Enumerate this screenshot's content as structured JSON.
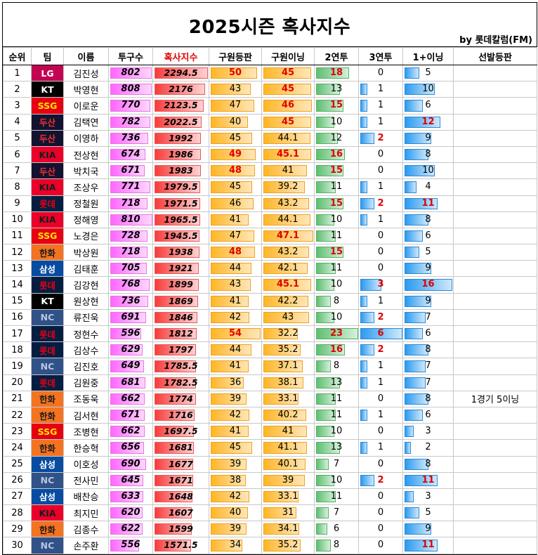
{
  "title": "2025시즌 혹사지수",
  "byline": "by 롯데칼럼(FM)",
  "headers": [
    "순위",
    "팀",
    "이름",
    "투구수",
    "혹사지수",
    "구원등판",
    "구원이닝",
    "2연투",
    "3연투",
    "1+이닝",
    "선발등판"
  ],
  "highlight_header": "혹사지수",
  "max": {
    "pitches": 810,
    "index": 2294.5,
    "relief": 54,
    "innings": 47.1,
    "two": 23,
    "three": 6,
    "plus": 16
  },
  "rows": [
    {
      "rank": "1",
      "team": "LG",
      "team_class": "LG",
      "name": "김진성",
      "pitches": "802",
      "index": "2294.5",
      "relief": "50",
      "innings": "45",
      "two": "18",
      "three": "0",
      "plus": "5",
      "start": "",
      "relief_hl": true,
      "innings_hl": true,
      "two_hl": true,
      "three_hl": false,
      "plus_hl": false
    },
    {
      "rank": "2",
      "team": "KT",
      "team_class": "KT",
      "name": "박영현",
      "pitches": "808",
      "index": "2176",
      "relief": "43",
      "innings": "45",
      "two": "13",
      "three": "1",
      "plus": "10",
      "start": "",
      "relief_hl": false,
      "innings_hl": true,
      "two_hl": false,
      "three_hl": false,
      "plus_hl": false
    },
    {
      "rank": "3",
      "team": "SSG",
      "team_class": "SSG",
      "name": "이로운",
      "pitches": "770",
      "index": "2123.5",
      "relief": "47",
      "innings": "46",
      "two": "15",
      "three": "1",
      "plus": "6",
      "start": "",
      "relief_hl": false,
      "innings_hl": true,
      "two_hl": true,
      "three_hl": false,
      "plus_hl": false
    },
    {
      "rank": "4",
      "team": "두산",
      "team_class": "DOOSAN",
      "name": "김택연",
      "pitches": "782",
      "index": "2022.5",
      "relief": "40",
      "innings": "45",
      "two": "10",
      "three": "1",
      "plus": "12",
      "start": "",
      "relief_hl": false,
      "innings_hl": true,
      "two_hl": false,
      "three_hl": false,
      "plus_hl": true
    },
    {
      "rank": "5",
      "team": "두산",
      "team_class": "DOOSAN",
      "name": "이영하",
      "pitches": "736",
      "index": "1992",
      "relief": "45",
      "innings": "44.1",
      "two": "12",
      "three": "2",
      "plus": "9",
      "start": "",
      "relief_hl": false,
      "innings_hl": false,
      "two_hl": false,
      "three_hl": true,
      "plus_hl": false
    },
    {
      "rank": "6",
      "team": "KIA",
      "team_class": "KIA",
      "name": "전상현",
      "pitches": "674",
      "index": "1986",
      "relief": "49",
      "innings": "45.1",
      "two": "16",
      "three": "0",
      "plus": "8",
      "start": "",
      "relief_hl": true,
      "innings_hl": true,
      "two_hl": true,
      "three_hl": false,
      "plus_hl": false
    },
    {
      "rank": "7",
      "team": "두산",
      "team_class": "DOOSAN",
      "name": "박치국",
      "pitches": "671",
      "index": "1983",
      "relief": "48",
      "innings": "41",
      "two": "15",
      "three": "0",
      "plus": "10",
      "start": "",
      "relief_hl": true,
      "innings_hl": false,
      "two_hl": true,
      "three_hl": false,
      "plus_hl": false
    },
    {
      "rank": "8",
      "team": "KIA",
      "team_class": "KIA",
      "name": "조상우",
      "pitches": "771",
      "index": "1979.5",
      "relief": "45",
      "innings": "39.2",
      "two": "11",
      "three": "1",
      "plus": "4",
      "start": "",
      "relief_hl": false,
      "innings_hl": false,
      "two_hl": false,
      "three_hl": false,
      "plus_hl": false
    },
    {
      "rank": "9",
      "team": "롯데",
      "team_class": "LOTTE",
      "name": "정철원",
      "pitches": "718",
      "index": "1971.5",
      "relief": "46",
      "innings": "43.2",
      "two": "15",
      "three": "2",
      "plus": "11",
      "start": "",
      "relief_hl": false,
      "innings_hl": false,
      "two_hl": true,
      "three_hl": true,
      "plus_hl": true
    },
    {
      "rank": "10",
      "team": "KIA",
      "team_class": "KIA",
      "name": "정해영",
      "pitches": "810",
      "index": "1965.5",
      "relief": "41",
      "innings": "44.1",
      "two": "10",
      "three": "1",
      "plus": "8",
      "start": "",
      "relief_hl": false,
      "innings_hl": false,
      "two_hl": false,
      "three_hl": false,
      "plus_hl": false
    },
    {
      "rank": "11",
      "team": "SSG",
      "team_class": "SSG",
      "name": "노경은",
      "pitches": "728",
      "index": "1945.5",
      "relief": "47",
      "innings": "47.1",
      "two": "11",
      "three": "0",
      "plus": "6",
      "start": "",
      "relief_hl": false,
      "innings_hl": true,
      "two_hl": false,
      "three_hl": false,
      "plus_hl": false
    },
    {
      "rank": "12",
      "team": "한화",
      "team_class": "HANWHA",
      "name": "박상원",
      "pitches": "718",
      "index": "1938",
      "relief": "48",
      "innings": "43.2",
      "two": "15",
      "three": "0",
      "plus": "5",
      "start": "",
      "relief_hl": true,
      "innings_hl": false,
      "two_hl": true,
      "three_hl": false,
      "plus_hl": false
    },
    {
      "rank": "13",
      "team": "삼성",
      "team_class": "SAMSUNG",
      "name": "김태훈",
      "pitches": "705",
      "index": "1921",
      "relief": "44",
      "innings": "42.1",
      "two": "11",
      "three": "0",
      "plus": "9",
      "start": "",
      "relief_hl": false,
      "innings_hl": false,
      "two_hl": false,
      "three_hl": false,
      "plus_hl": false
    },
    {
      "rank": "14",
      "team": "롯데",
      "team_class": "LOTTE",
      "name": "김강현",
      "pitches": "768",
      "index": "1899",
      "relief": "43",
      "innings": "45.1",
      "two": "10",
      "three": "3",
      "plus": "16",
      "start": "",
      "relief_hl": false,
      "innings_hl": true,
      "two_hl": false,
      "three_hl": true,
      "plus_hl": true
    },
    {
      "rank": "15",
      "team": "KT",
      "team_class": "KT",
      "name": "원상현",
      "pitches": "736",
      "index": "1869",
      "relief": "41",
      "innings": "42.2",
      "two": "8",
      "three": "1",
      "plus": "9",
      "start": "",
      "relief_hl": false,
      "innings_hl": false,
      "two_hl": false,
      "three_hl": false,
      "plus_hl": false
    },
    {
      "rank": "16",
      "team": "NC",
      "team_class": "NC",
      "name": "류진욱",
      "pitches": "691",
      "index": "1846",
      "relief": "42",
      "innings": "43",
      "two": "10",
      "three": "2",
      "plus": "7",
      "start": "",
      "relief_hl": false,
      "innings_hl": false,
      "two_hl": false,
      "three_hl": true,
      "plus_hl": false
    },
    {
      "rank": "17",
      "team": "롯데",
      "team_class": "LOTTE",
      "name": "정현수",
      "pitches": "596",
      "index": "1812",
      "relief": "54",
      "innings": "32.2",
      "two": "23",
      "three": "6",
      "plus": "6",
      "start": "",
      "relief_hl": true,
      "innings_hl": false,
      "two_hl": true,
      "three_hl": true,
      "plus_hl": false
    },
    {
      "rank": "18",
      "team": "롯데",
      "team_class": "LOTTE",
      "name": "김상수",
      "pitches": "629",
      "index": "1797",
      "relief": "44",
      "innings": "35.2",
      "two": "16",
      "three": "2",
      "plus": "8",
      "start": "",
      "relief_hl": false,
      "innings_hl": false,
      "two_hl": true,
      "three_hl": true,
      "plus_hl": false
    },
    {
      "rank": "19",
      "team": "NC",
      "team_class": "NC",
      "name": "김진호",
      "pitches": "649",
      "index": "1785.5",
      "relief": "41",
      "innings": "37.1",
      "two": "8",
      "three": "1",
      "plus": "7",
      "start": "",
      "relief_hl": false,
      "innings_hl": false,
      "two_hl": false,
      "three_hl": false,
      "plus_hl": false
    },
    {
      "rank": "20",
      "team": "롯데",
      "team_class": "LOTTE",
      "name": "김원중",
      "pitches": "681",
      "index": "1782.5",
      "relief": "36",
      "innings": "38.1",
      "two": "13",
      "three": "1",
      "plus": "7",
      "start": "",
      "relief_hl": false,
      "innings_hl": false,
      "two_hl": false,
      "three_hl": false,
      "plus_hl": false
    },
    {
      "rank": "21",
      "team": "한화",
      "team_class": "HANWHA",
      "name": "조동욱",
      "pitches": "662",
      "index": "1774",
      "relief": "39",
      "innings": "33.1",
      "two": "11",
      "three": "0",
      "plus": "8",
      "start": "1경기 5이닝",
      "relief_hl": false,
      "innings_hl": false,
      "two_hl": false,
      "three_hl": false,
      "plus_hl": false
    },
    {
      "rank": "22",
      "team": "한화",
      "team_class": "HANWHA",
      "name": "김서현",
      "pitches": "671",
      "index": "1716",
      "relief": "42",
      "innings": "40.2",
      "two": "11",
      "three": "1",
      "plus": "6",
      "start": "",
      "relief_hl": false,
      "innings_hl": false,
      "two_hl": false,
      "three_hl": false,
      "plus_hl": false
    },
    {
      "rank": "23",
      "team": "SSG",
      "team_class": "SSG",
      "name": "조병현",
      "pitches": "662",
      "index": "1697.5",
      "relief": "41",
      "innings": "41",
      "two": "10",
      "three": "0",
      "plus": "3",
      "start": "",
      "relief_hl": false,
      "innings_hl": false,
      "two_hl": false,
      "three_hl": false,
      "plus_hl": false
    },
    {
      "rank": "24",
      "team": "한화",
      "team_class": "HANWHA",
      "name": "한승혁",
      "pitches": "656",
      "index": "1681",
      "relief": "45",
      "innings": "41.1",
      "two": "13",
      "three": "1",
      "plus": "2",
      "start": "",
      "relief_hl": false,
      "innings_hl": false,
      "two_hl": false,
      "three_hl": false,
      "plus_hl": false
    },
    {
      "rank": "25",
      "team": "삼성",
      "team_class": "SAMSUNG",
      "name": "이호성",
      "pitches": "690",
      "index": "1677",
      "relief": "39",
      "innings": "40.1",
      "two": "7",
      "three": "0",
      "plus": "8",
      "start": "",
      "relief_hl": false,
      "innings_hl": false,
      "two_hl": false,
      "three_hl": false,
      "plus_hl": false
    },
    {
      "rank": "26",
      "team": "NC",
      "team_class": "NC",
      "name": "전사민",
      "pitches": "645",
      "index": "1671",
      "relief": "38",
      "innings": "39",
      "two": "10",
      "three": "2",
      "plus": "11",
      "start": "",
      "relief_hl": false,
      "innings_hl": false,
      "two_hl": false,
      "three_hl": true,
      "plus_hl": true
    },
    {
      "rank": "27",
      "team": "삼성",
      "team_class": "SAMSUNG",
      "name": "배찬승",
      "pitches": "633",
      "index": "1648",
      "relief": "42",
      "innings": "33.1",
      "two": "11",
      "three": "0",
      "plus": "3",
      "start": "",
      "relief_hl": false,
      "innings_hl": false,
      "two_hl": false,
      "three_hl": false,
      "plus_hl": false
    },
    {
      "rank": "28",
      "team": "KIA",
      "team_class": "KIA",
      "name": "최지민",
      "pitches": "620",
      "index": "1607",
      "relief": "40",
      "innings": "31",
      "two": "7",
      "three": "0",
      "plus": "5",
      "start": "",
      "relief_hl": false,
      "innings_hl": false,
      "two_hl": false,
      "three_hl": false,
      "plus_hl": false
    },
    {
      "rank": "29",
      "team": "한화",
      "team_class": "HANWHA",
      "name": "김종수",
      "pitches": "622",
      "index": "1599",
      "relief": "39",
      "innings": "34.1",
      "two": "6",
      "three": "0",
      "plus": "9",
      "start": "",
      "relief_hl": false,
      "innings_hl": false,
      "two_hl": false,
      "three_hl": false,
      "plus_hl": false
    },
    {
      "rank": "30",
      "team": "NC",
      "team_class": "NC",
      "name": "손주환",
      "pitches": "556",
      "index": "1571.5",
      "relief": "34",
      "innings": "35.2",
      "two": "8",
      "three": "0",
      "plus": "11",
      "start": "",
      "relief_hl": false,
      "innings_hl": false,
      "two_hl": false,
      "three_hl": false,
      "plus_hl": true
    }
  ]
}
